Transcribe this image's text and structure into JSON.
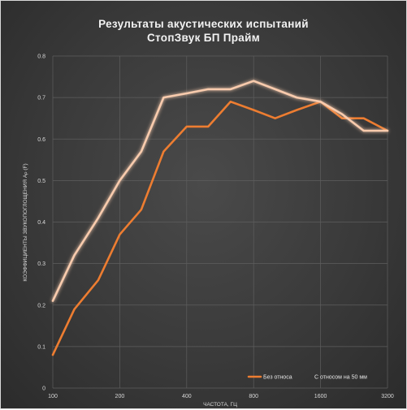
{
  "chart_data": {
    "type": "line",
    "title_line1": "Результаты акустических испытаний",
    "title_line2": "СтопЗвук БП Прайм",
    "xlabel": "ЧАСТОТА, ГЦ",
    "ylabel": "КОЭФФИЦИЕНТЫ ЗВУКОПОГЛОЩЕНИЯ A",
    "ylabel_sub": "P",
    "ylabel_suffix": " (F)",
    "x": [
      100,
      125,
      160,
      200,
      250,
      315,
      400,
      500,
      630,
      800,
      1000,
      1250,
      1600,
      2000,
      2500,
      3200
    ],
    "x_tick_labels": [
      "100",
      "200",
      "400",
      "800",
      "1600",
      "3200"
    ],
    "x_tick_values": [
      100,
      200,
      400,
      800,
      1600,
      3200
    ],
    "x_scale": "log2",
    "ylim": [
      0,
      0.8
    ],
    "y_ticks": [
      "0",
      "0.1",
      "0.2",
      "0.3",
      "0.4",
      "0.5",
      "0.6",
      "0.7",
      "0.8"
    ],
    "grid": true,
    "legend_position": "bottom-right",
    "series": [
      {
        "name": "Без относа",
        "color": "#ed7d31",
        "values": [
          0.08,
          0.19,
          0.26,
          0.37,
          0.43,
          0.57,
          0.63,
          0.63,
          0.69,
          0.67,
          0.65,
          0.67,
          0.69,
          0.65,
          0.65,
          0.62
        ]
      },
      {
        "name": "С относом на 50 мм",
        "color": "#f8cbad",
        "values": [
          0.21,
          0.32,
          0.41,
          0.5,
          0.57,
          0.7,
          0.71,
          0.72,
          0.72,
          0.74,
          0.72,
          0.7,
          0.69,
          0.66,
          0.62,
          0.62
        ]
      }
    ]
  }
}
